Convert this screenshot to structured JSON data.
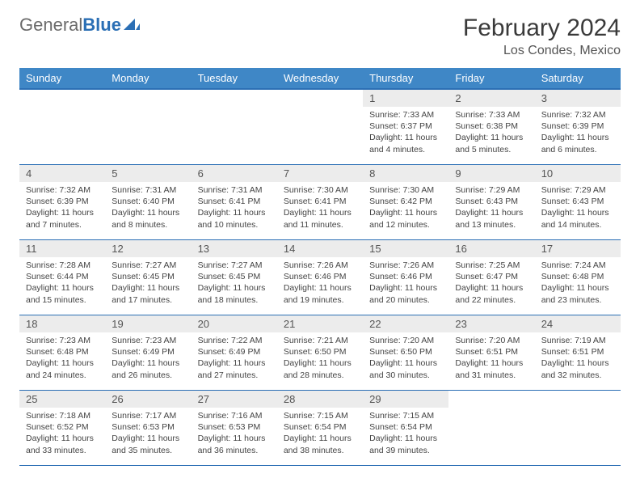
{
  "logo": {
    "text_gray": "General",
    "text_blue": "Blue"
  },
  "title": "February 2024",
  "subtitle": "Los Condes, Mexico",
  "colors": {
    "header_bg": "#3f87c6",
    "header_border": "#2b6fb5",
    "daynum_bg": "#ececec",
    "text": "#444444",
    "logo_gray": "#6b6b6b",
    "logo_blue": "#2b6fb5"
  },
  "weekdays": [
    "Sunday",
    "Monday",
    "Tuesday",
    "Wednesday",
    "Thursday",
    "Friday",
    "Saturday"
  ],
  "weeks": [
    [
      null,
      null,
      null,
      null,
      {
        "n": "1",
        "sunrise": "7:33 AM",
        "sunset": "6:37 PM",
        "daylight": "11 hours and 4 minutes."
      },
      {
        "n": "2",
        "sunrise": "7:33 AM",
        "sunset": "6:38 PM",
        "daylight": "11 hours and 5 minutes."
      },
      {
        "n": "3",
        "sunrise": "7:32 AM",
        "sunset": "6:39 PM",
        "daylight": "11 hours and 6 minutes."
      }
    ],
    [
      {
        "n": "4",
        "sunrise": "7:32 AM",
        "sunset": "6:39 PM",
        "daylight": "11 hours and 7 minutes."
      },
      {
        "n": "5",
        "sunrise": "7:31 AM",
        "sunset": "6:40 PM",
        "daylight": "11 hours and 8 minutes."
      },
      {
        "n": "6",
        "sunrise": "7:31 AM",
        "sunset": "6:41 PM",
        "daylight": "11 hours and 10 minutes."
      },
      {
        "n": "7",
        "sunrise": "7:30 AM",
        "sunset": "6:41 PM",
        "daylight": "11 hours and 11 minutes."
      },
      {
        "n": "8",
        "sunrise": "7:30 AM",
        "sunset": "6:42 PM",
        "daylight": "11 hours and 12 minutes."
      },
      {
        "n": "9",
        "sunrise": "7:29 AM",
        "sunset": "6:43 PM",
        "daylight": "11 hours and 13 minutes."
      },
      {
        "n": "10",
        "sunrise": "7:29 AM",
        "sunset": "6:43 PM",
        "daylight": "11 hours and 14 minutes."
      }
    ],
    [
      {
        "n": "11",
        "sunrise": "7:28 AM",
        "sunset": "6:44 PM",
        "daylight": "11 hours and 15 minutes."
      },
      {
        "n": "12",
        "sunrise": "7:27 AM",
        "sunset": "6:45 PM",
        "daylight": "11 hours and 17 minutes."
      },
      {
        "n": "13",
        "sunrise": "7:27 AM",
        "sunset": "6:45 PM",
        "daylight": "11 hours and 18 minutes."
      },
      {
        "n": "14",
        "sunrise": "7:26 AM",
        "sunset": "6:46 PM",
        "daylight": "11 hours and 19 minutes."
      },
      {
        "n": "15",
        "sunrise": "7:26 AM",
        "sunset": "6:46 PM",
        "daylight": "11 hours and 20 minutes."
      },
      {
        "n": "16",
        "sunrise": "7:25 AM",
        "sunset": "6:47 PM",
        "daylight": "11 hours and 22 minutes."
      },
      {
        "n": "17",
        "sunrise": "7:24 AM",
        "sunset": "6:48 PM",
        "daylight": "11 hours and 23 minutes."
      }
    ],
    [
      {
        "n": "18",
        "sunrise": "7:23 AM",
        "sunset": "6:48 PM",
        "daylight": "11 hours and 24 minutes."
      },
      {
        "n": "19",
        "sunrise": "7:23 AM",
        "sunset": "6:49 PM",
        "daylight": "11 hours and 26 minutes."
      },
      {
        "n": "20",
        "sunrise": "7:22 AM",
        "sunset": "6:49 PM",
        "daylight": "11 hours and 27 minutes."
      },
      {
        "n": "21",
        "sunrise": "7:21 AM",
        "sunset": "6:50 PM",
        "daylight": "11 hours and 28 minutes."
      },
      {
        "n": "22",
        "sunrise": "7:20 AM",
        "sunset": "6:50 PM",
        "daylight": "11 hours and 30 minutes."
      },
      {
        "n": "23",
        "sunrise": "7:20 AM",
        "sunset": "6:51 PM",
        "daylight": "11 hours and 31 minutes."
      },
      {
        "n": "24",
        "sunrise": "7:19 AM",
        "sunset": "6:51 PM",
        "daylight": "11 hours and 32 minutes."
      }
    ],
    [
      {
        "n": "25",
        "sunrise": "7:18 AM",
        "sunset": "6:52 PM",
        "daylight": "11 hours and 33 minutes."
      },
      {
        "n": "26",
        "sunrise": "7:17 AM",
        "sunset": "6:53 PM",
        "daylight": "11 hours and 35 minutes."
      },
      {
        "n": "27",
        "sunrise": "7:16 AM",
        "sunset": "6:53 PM",
        "daylight": "11 hours and 36 minutes."
      },
      {
        "n": "28",
        "sunrise": "7:15 AM",
        "sunset": "6:54 PM",
        "daylight": "11 hours and 38 minutes."
      },
      {
        "n": "29",
        "sunrise": "7:15 AM",
        "sunset": "6:54 PM",
        "daylight": "11 hours and 39 minutes."
      },
      null,
      null
    ]
  ]
}
